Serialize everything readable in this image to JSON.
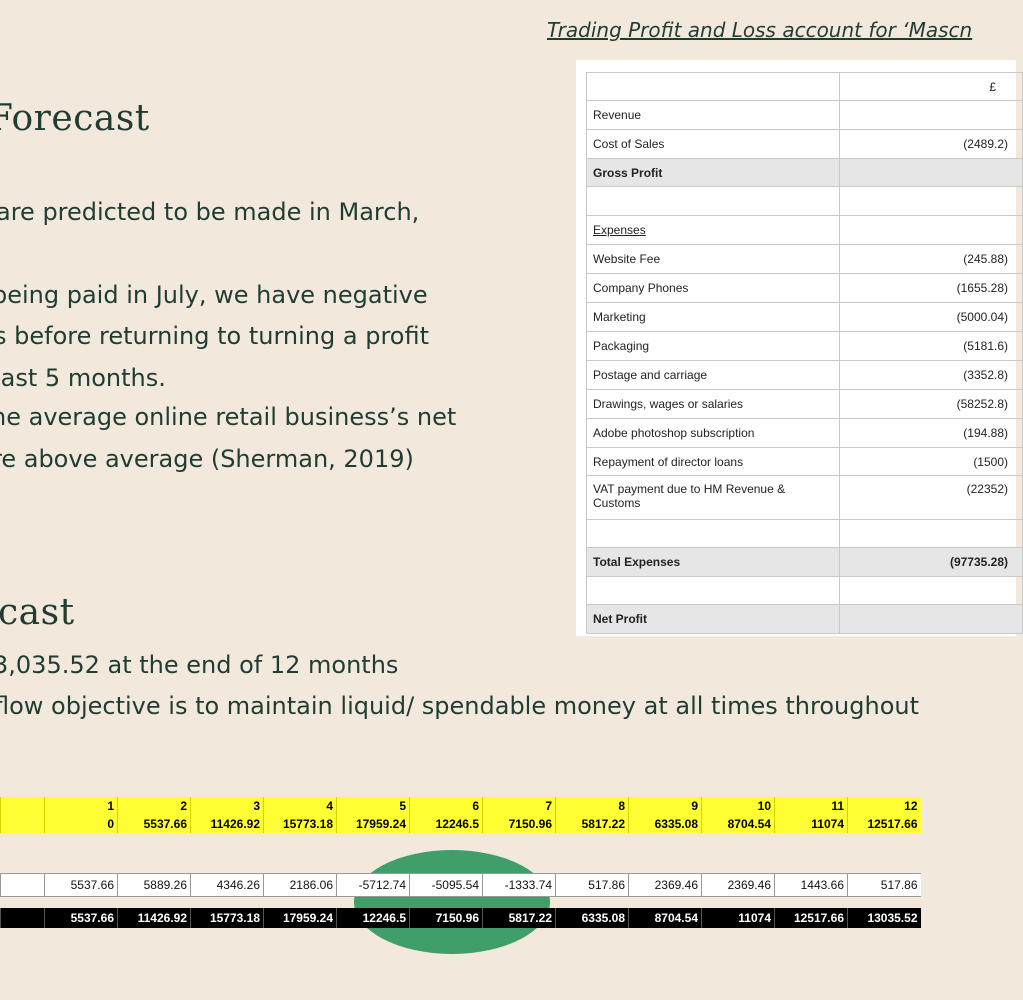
{
  "slide": {
    "caption": "Trading Profit and Loss account for ‘Mascn",
    "section1": {
      "title": "Forecast",
      "lines": [
        " are predicted to be made in March,",
        ".",
        "being paid in July, we have negative",
        "s before returning to turning a profit",
        "last 5 months.",
        "he average online retail business’s net",
        "re above average (Sherman, 2019)"
      ]
    },
    "section2": {
      "title": "cast",
      "lines": [
        "3,035.52 at the end of 12 months",
        "flow objective is to maintain liquid/ spendable money at all times throughout"
      ]
    }
  },
  "pl_table": {
    "header_value": "£",
    "rows": [
      {
        "label": "Revenue",
        "value": ""
      },
      {
        "label": "Cost of Sales",
        "value": "(2489.2)"
      },
      {
        "label": "Gross Profit",
        "value": ""
      },
      {
        "label": "",
        "value": ""
      },
      {
        "label": "Expenses",
        "value": ""
      },
      {
        "label": "Website Fee",
        "value": "(245.88)"
      },
      {
        "label": "Company Phones",
        "value": "(1655.28)"
      },
      {
        "label": "Marketing",
        "value": "(5000.04)"
      },
      {
        "label": "Packaging",
        "value": "(5181.6)"
      },
      {
        "label": "Postage and carriage",
        "value": "(3352.8)"
      },
      {
        "label": "Drawings, wages or salaries",
        "value": "(58252.8)"
      },
      {
        "label": "Adobe photoshop subscription",
        "value": "(194.88)"
      },
      {
        "label": "Repayment of director loans",
        "value": "(1500)"
      },
      {
        "label": "VAT payment due to HM Revenue & Customs",
        "value": "(22352)"
      },
      {
        "label": "",
        "value": ""
      },
      {
        "label": "Total Expenses",
        "value": "(97735.28)"
      },
      {
        "label": "",
        "value": ""
      },
      {
        "label": "Net Profit",
        "value": ""
      }
    ]
  },
  "cash_flow": {
    "months": [
      "1",
      "2",
      "3",
      "4",
      "5",
      "6",
      "7",
      "8",
      "9",
      "10",
      "11",
      "12"
    ],
    "opening": [
      "0",
      "5537.66",
      "11426.92",
      "15773.18",
      "17959.24",
      "12246.5",
      "7150.96",
      "5817.22",
      "6335.08",
      "8704.54",
      "11074",
      "12517.66"
    ],
    "net_flow": [
      "5537.66",
      "5889.26",
      "4346.26",
      "2186.06",
      "-5712.74",
      "-5095.54",
      "-1333.74",
      "517.86",
      "2369.46",
      "2369.46",
      "1443.66",
      "517.86"
    ],
    "closing": [
      "5537.66",
      "11426.92",
      "15773.18",
      "17959.24",
      "12246.5",
      "7150.96",
      "5817.22",
      "6335.08",
      "8704.54",
      "11074",
      "12517.66",
      "13035.52"
    ]
  }
}
